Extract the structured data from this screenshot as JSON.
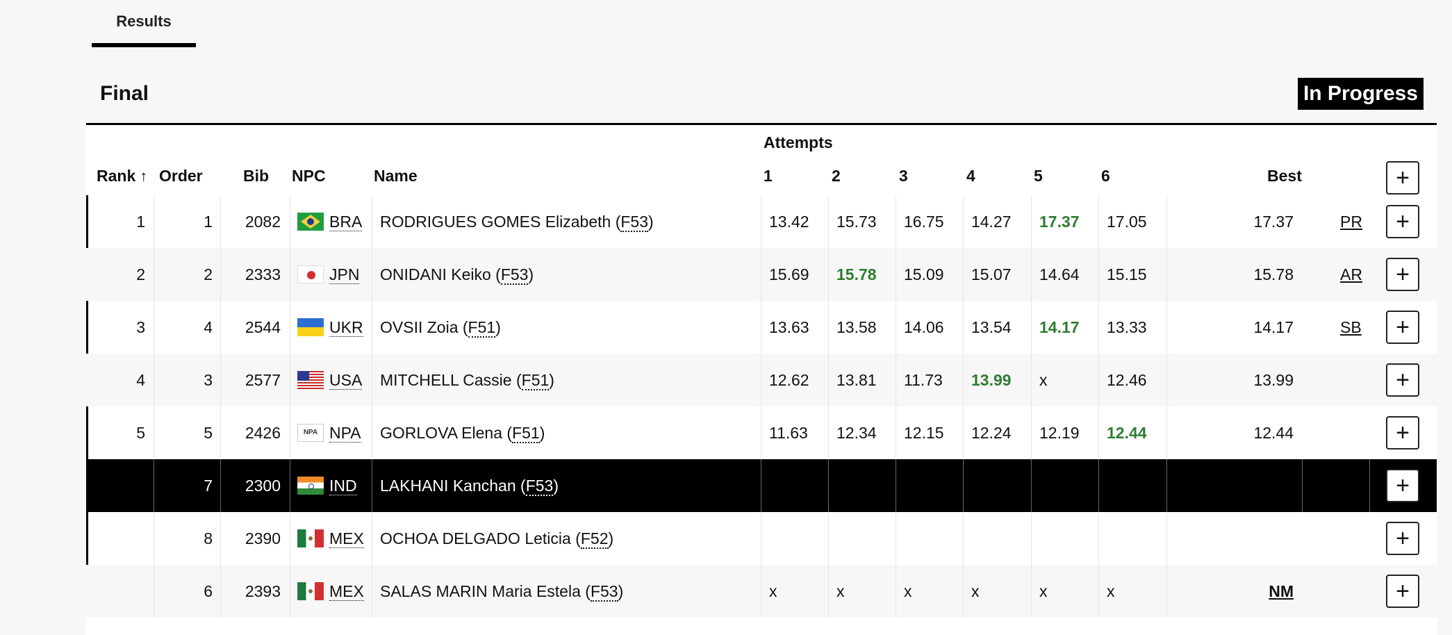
{
  "tabs": {
    "results_label": "Results"
  },
  "event": {
    "title": "Final",
    "status": "In Progress"
  },
  "table": {
    "attempts_label": "Attempts",
    "headers": {
      "rank": "Rank",
      "order": "Order",
      "bib": "Bib",
      "npc": "NPC",
      "name": "Name",
      "a1": "1",
      "a2": "2",
      "a3": "3",
      "a4": "4",
      "a5": "5",
      "a6": "6",
      "best": "Best"
    },
    "sort_icon": "↑",
    "rows": [
      {
        "rank": "1",
        "order": "1",
        "bib": "2082",
        "flag": "bra",
        "npc": "BRA",
        "name": "RODRIGUES GOMES Elizabeth",
        "class": "F53",
        "attempts": [
          "13.42",
          "15.73",
          "16.75",
          "14.27",
          "17.37",
          "17.05"
        ],
        "best_attempt": 4,
        "best": "17.37",
        "record": "PR"
      },
      {
        "rank": "2",
        "order": "2",
        "bib": "2333",
        "flag": "jpn",
        "npc": "JPN",
        "name": "ONIDANI Keiko",
        "class": "F53",
        "attempts": [
          "15.69",
          "15.78",
          "15.09",
          "15.07",
          "14.64",
          "15.15"
        ],
        "best_attempt": 1,
        "best": "15.78",
        "record": "AR"
      },
      {
        "rank": "3",
        "order": "4",
        "bib": "2544",
        "flag": "ukr",
        "npc": "UKR",
        "name": "OVSII Zoia",
        "class": "F51",
        "attempts": [
          "13.63",
          "13.58",
          "14.06",
          "13.54",
          "14.17",
          "13.33"
        ],
        "best_attempt": 4,
        "best": "14.17",
        "record": "SB"
      },
      {
        "rank": "4",
        "order": "3",
        "bib": "2577",
        "flag": "usa",
        "npc": "USA",
        "name": "MITCHELL Cassie",
        "class": "F51",
        "attempts": [
          "12.62",
          "13.81",
          "11.73",
          "13.99",
          "x",
          "12.46"
        ],
        "best_attempt": 3,
        "best": "13.99",
        "record": ""
      },
      {
        "rank": "5",
        "order": "5",
        "bib": "2426",
        "flag": "npa",
        "flag_text": "NPA",
        "npc": "NPA",
        "name": "GORLOVA Elena",
        "class": "F51",
        "attempts": [
          "11.63",
          "12.34",
          "12.15",
          "12.24",
          "12.19",
          "12.44"
        ],
        "best_attempt": 5,
        "best": "12.44",
        "record": ""
      },
      {
        "rank": "",
        "order": "7",
        "bib": "2300",
        "flag": "ind",
        "npc": "IND",
        "name": "LAKHANI Kanchan",
        "class": "F53",
        "attempts": [
          "",
          "",
          "",
          "",
          "",
          ""
        ],
        "best_attempt": -1,
        "best": "",
        "record": "",
        "highlight": true
      },
      {
        "rank": "",
        "order": "8",
        "bib": "2390",
        "flag": "mex",
        "npc": "MEX",
        "name": "OCHOA DELGADO Leticia",
        "class": "F52",
        "attempts": [
          "",
          "",
          "",
          "",
          "",
          ""
        ],
        "best_attempt": -1,
        "best": "",
        "record": ""
      },
      {
        "rank": "",
        "order": "6",
        "bib": "2393",
        "flag": "mex",
        "npc": "MEX",
        "name": "SALAS MARIN Maria Estela",
        "class": "F53",
        "attempts": [
          "x",
          "x",
          "x",
          "x",
          "x",
          "x"
        ],
        "best_attempt": -1,
        "best": "NM",
        "record": ""
      }
    ],
    "expand_icon": "+"
  },
  "colors": {
    "best_attempt": "#2e7d32",
    "highlight_row": "#000000"
  }
}
